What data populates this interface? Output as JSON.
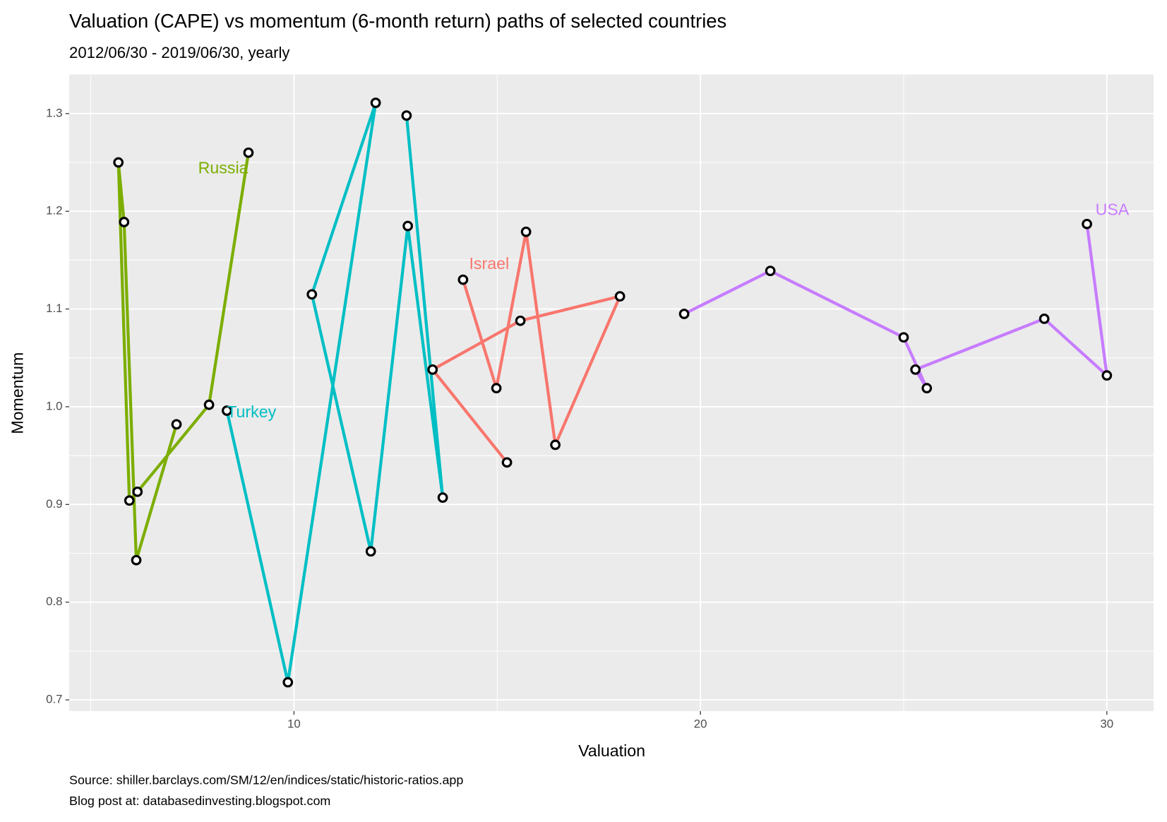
{
  "chart_data": {
    "type": "line",
    "title": "Valuation (CAPE) vs momentum (6-month return) paths of selected countries",
    "subtitle": "2012/06/30 - 2019/06/30, yearly",
    "x_label": "Valuation",
    "y_label": "Momentum",
    "caption": [
      "Source: shiller.barclays.com/SM/12/en/indices/static/historic-ratios.app",
      "Blog post at: databasedinvesting.blogspot.com"
    ],
    "xlim": [
      4.47,
      31.15
    ],
    "ylim": [
      0.6886,
      1.34
    ],
    "xticks": [
      10,
      20,
      30
    ],
    "yticks": [
      0.7,
      0.8,
      0.9,
      {
        "value": 1,
        "label": "1.0"
      },
      1.1,
      1.2,
      1.3
    ],
    "grid": true,
    "series": [
      {
        "name": "Russia",
        "color": "#7CAE00",
        "x": [
          8.88,
          7.91,
          6.15,
          5.95,
          5.68,
          5.82,
          6.12,
          7.11
        ],
        "values": [
          1.26,
          1.002,
          0.913,
          0.904,
          1.25,
          1.189,
          0.843,
          0.982
        ]
      },
      {
        "name": "Turkey",
        "color": "#00BFC4",
        "x": [
          8.35,
          9.85,
          12.01,
          10.44,
          11.89,
          12.8,
          13.66,
          12.77
        ],
        "values": [
          0.996,
          0.718,
          1.311,
          1.115,
          0.852,
          1.185,
          0.907,
          1.298
        ]
      },
      {
        "name": "Israel",
        "color": "#F8766D",
        "x": [
          14.16,
          14.98,
          15.71,
          16.43,
          18.02,
          15.57,
          13.41,
          15.24
        ],
        "values": [
          1.13,
          1.019,
          1.179,
          0.961,
          1.113,
          1.088,
          1.038,
          0.943
        ]
      },
      {
        "name": "USA",
        "color": "#C77CFF",
        "x": [
          29.51,
          30.0,
          28.46,
          25.29,
          25.57,
          25.0,
          21.72,
          19.6
        ],
        "values": [
          1.187,
          1.032,
          1.09,
          1.038,
          1.019,
          1.071,
          1.139,
          1.095
        ]
      }
    ]
  }
}
